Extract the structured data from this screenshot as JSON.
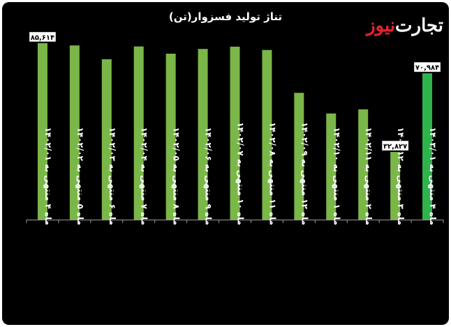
{
  "brand": {
    "part1": "تجارت",
    "part2": "نیوز"
  },
  "colors": {
    "bar": "#7ab648",
    "highlight": "#2fb34b",
    "axis": "#9a9a9a",
    "label": "#ffffff",
    "background": "#000000"
  },
  "chart_data": {
    "type": "bar",
    "title": "تناژ تولید فسزوار(تن)",
    "xlabel": "",
    "ylabel": "",
    "ylim": [
      0,
      92
    ],
    "grid": false,
    "categories": [
      "ماه ۴ منتهی به ۱۴۰۲/۰۱",
      "ماه ۵ منتهی به ۱۴۰۲/۰۲",
      "ماه ۶ منتهی به ۱۴۰۲/۰۳",
      "ماه ۷ منتهی به ۱۴۰۲/۰۴",
      "ماه ۸ منتهی به ۱۴۰۲/۰۵",
      "ماه ۹ منتهی به ۱۴۰۲/۰۶",
      "ماه ۱۰ منتهی به ۱۴۰۲/۰۷",
      "ماه ۱۱ منتهی به ۱۴۰۲/۰۸",
      "ماه ۱۲ منتهی به ۱۴۰۲/۰۹",
      "ماه ۱ منتهی به ۱۴۰۲/۱۰",
      "ماه ۲ منتهی به ۱۴۰۲/۱۱",
      "ماه ۳ منتهی به ۱۴۰۲/۱۲",
      "ماه ۴ منتهی به ۱۴۰۳/۰۱"
    ],
    "values": [
      85.614,
      84.5,
      77.8,
      84.0,
      80.5,
      82.8,
      83.9,
      82.3,
      61.5,
      51.5,
      53.5,
      32.827,
      70.984
    ],
    "highlight_index": 12,
    "data_labels": [
      {
        "index": 0,
        "text": "۸۵,۶۱۴"
      },
      {
        "index": 11,
        "text": "۳۲,۸۲۷"
      },
      {
        "index": 12,
        "text": "۷۰,۹۸۴"
      }
    ]
  }
}
